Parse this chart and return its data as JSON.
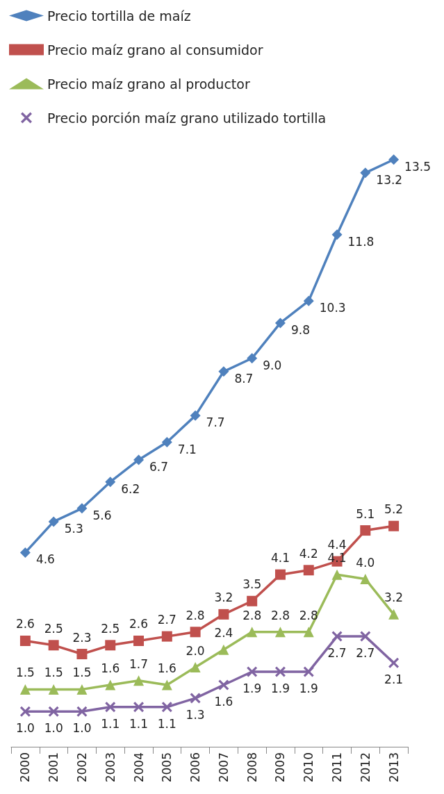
{
  "chart_data": {
    "type": "line",
    "categories": [
      "2000",
      "2001",
      "2002",
      "2003",
      "2004",
      "2005",
      "2006",
      "2007",
      "2008",
      "2009",
      "2010",
      "2011",
      "2012",
      "2013"
    ],
    "series": [
      {
        "name": "Precio tortilla de maíz",
        "color": "#4f81bd",
        "marker": "diamond",
        "values": [
          4.6,
          5.3,
          5.6,
          6.2,
          6.7,
          7.1,
          7.7,
          8.7,
          9.0,
          9.8,
          10.3,
          11.8,
          13.2,
          13.5
        ],
        "value_labels": [
          "4.6",
          "5.3",
          "5.6",
          "6.2",
          "6.7",
          "7.1",
          "7.7",
          "8.7",
          "9.0",
          "9.8",
          "10.3",
          "11.8",
          "13.2",
          "13.5"
        ]
      },
      {
        "name": "Precio maíz grano al consumidor",
        "color": "#c0504d",
        "marker": "square",
        "values": [
          2.6,
          2.5,
          2.3,
          2.5,
          2.6,
          2.7,
          2.8,
          3.2,
          3.5,
          4.1,
          4.2,
          4.4,
          5.1,
          5.2
        ],
        "value_labels": [
          "2.6",
          "2.5",
          "2.3",
          "2.5",
          "2.6",
          "2.7",
          "2.8",
          "3.2",
          "3.5",
          "4.1",
          "4.2",
          "4.4",
          "5.1",
          "5.2"
        ]
      },
      {
        "name": "Precio maíz grano al productor",
        "color": "#9bbb59",
        "marker": "triangle",
        "values": [
          1.5,
          1.5,
          1.5,
          1.6,
          1.7,
          1.6,
          2.0,
          2.4,
          2.8,
          2.8,
          2.8,
          4.1,
          4.0,
          3.2
        ],
        "value_labels": [
          "1.5",
          "1.5",
          "1.5",
          "1.6",
          "1.7",
          "1.6",
          "2.0",
          "2.4",
          "2.8",
          "2.8",
          "2.8",
          "4.1",
          "4.0",
          "3.2"
        ]
      },
      {
        "name": "Precio porción maíz grano utilizado tortilla",
        "color": "#8064a2",
        "marker": "cross",
        "values": [
          1.0,
          1.0,
          1.0,
          1.1,
          1.1,
          1.1,
          1.3,
          1.6,
          1.9,
          1.9,
          1.9,
          2.7,
          2.7,
          2.1
        ],
        "value_labels": [
          "1.0",
          "1.0",
          "1.0",
          "1.1",
          "1.1",
          "1.1",
          "1.3",
          "1.6",
          "1.9",
          "1.9",
          "1.9",
          "2.7",
          "2.7",
          "2.1"
        ]
      }
    ],
    "legend": "top left",
    "grid": false
  }
}
